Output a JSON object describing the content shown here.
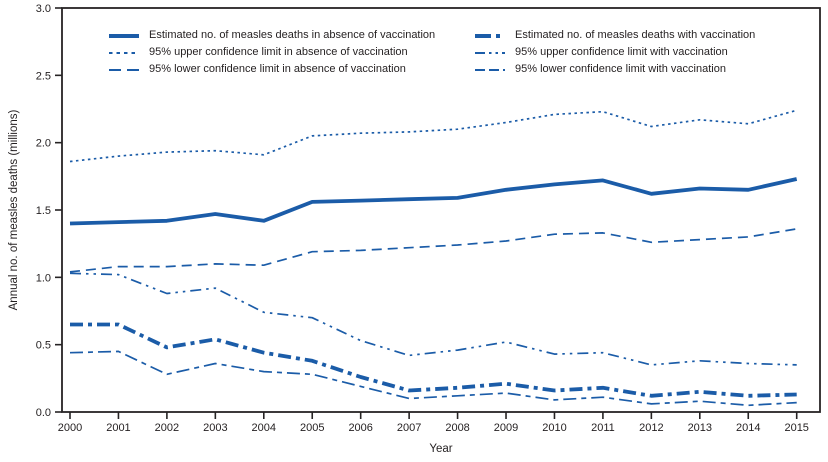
{
  "colors": {
    "line_blue": "#1b5ca8",
    "axis": "#262324",
    "text": "#231f20",
    "background": "#ffffff"
  },
  "y_axis": {
    "label": "Annual no. of measles deaths (millions)",
    "tick_labels": [
      "0.0",
      "0.5",
      "1.0",
      "1.5",
      "2.0",
      "2.5",
      "3.0"
    ],
    "tick_values": [
      0,
      0.5,
      1.0,
      1.5,
      2.0,
      2.5,
      3.0
    ]
  },
  "x_axis": {
    "label": "Year",
    "tick_labels": [
      "2000",
      "2001",
      "2002",
      "2003",
      "2004",
      "2005",
      "2006",
      "2007",
      "2008",
      "2009",
      "2010",
      "2011",
      "2012",
      "2013",
      "2014",
      "2015"
    ]
  },
  "legend": {
    "position": "top",
    "items": [
      {
        "label": "Estimated no. of measles deaths in absence of vaccination",
        "style": "solid-thick"
      },
      {
        "label": "95% upper confidence limit in absence of vaccination",
        "style": "dotted"
      },
      {
        "label": "95% lower confidence limit in absence of vaccination",
        "style": "long-dash"
      },
      {
        "label": "Estimated no. of measles deaths with vaccination",
        "style": "dash-dot-thick"
      },
      {
        "label": "95% upper confidence limit with vaccination",
        "style": "dash-dot-dot"
      },
      {
        "label": "95% lower confidence limit with vaccination",
        "style": "dash-dash-dot"
      }
    ]
  },
  "chart_data": {
    "type": "line",
    "title": "",
    "xlabel": "Year",
    "ylabel": "Annual no. of measles deaths (millions)",
    "x": [
      2000,
      2001,
      2002,
      2003,
      2004,
      2005,
      2006,
      2007,
      2008,
      2009,
      2010,
      2011,
      2012,
      2013,
      2014,
      2015
    ],
    "ylim": [
      0,
      3.0
    ],
    "grid": false,
    "legend_position": "top",
    "series": [
      {
        "key": "deaths-no-vaccination",
        "name": "Estimated no. of measles deaths in absence of vaccination",
        "style": "solid-thick",
        "values": [
          1.4,
          1.41,
          1.42,
          1.47,
          1.42,
          1.56,
          1.57,
          1.58,
          1.59,
          1.65,
          1.69,
          1.72,
          1.62,
          1.66,
          1.65,
          1.73
        ]
      },
      {
        "key": "upper-ci-no-vaccination",
        "name": "95% upper confidence limit in absence of vaccination",
        "style": "dotted",
        "values": [
          1.86,
          1.9,
          1.93,
          1.94,
          1.91,
          2.05,
          2.07,
          2.08,
          2.1,
          2.15,
          2.21,
          2.23,
          2.12,
          2.17,
          2.14,
          2.24
        ]
      },
      {
        "key": "lower-ci-no-vaccination",
        "name": "95% lower confidence limit in absence of vaccination",
        "style": "long-dash",
        "values": [
          1.04,
          1.08,
          1.08,
          1.1,
          1.09,
          1.19,
          1.2,
          1.22,
          1.24,
          1.27,
          1.32,
          1.33,
          1.26,
          1.28,
          1.3,
          1.36
        ]
      },
      {
        "key": "deaths-with-vaccination",
        "name": "Estimated no. of measles deaths with vaccination",
        "style": "dash-dot-thick",
        "values": [
          0.65,
          0.65,
          0.48,
          0.54,
          0.44,
          0.38,
          0.26,
          0.16,
          0.18,
          0.21,
          0.16,
          0.18,
          0.12,
          0.15,
          0.12,
          0.13
        ]
      },
      {
        "key": "upper-ci-with-vaccination",
        "name": "95% upper confidence limit with vaccination",
        "style": "dash-dot-dot",
        "values": [
          1.03,
          1.02,
          0.88,
          0.92,
          0.74,
          0.7,
          0.53,
          0.42,
          0.46,
          0.52,
          0.43,
          0.44,
          0.35,
          0.38,
          0.36,
          0.35
        ]
      },
      {
        "key": "lower-ci-with-vaccination",
        "name": "95% lower confidence limit with vaccination",
        "style": "dash-dash-dot",
        "values": [
          0.44,
          0.45,
          0.28,
          0.36,
          0.3,
          0.28,
          0.19,
          0.1,
          0.12,
          0.14,
          0.09,
          0.11,
          0.06,
          0.08,
          0.05,
          0.07
        ]
      }
    ]
  }
}
